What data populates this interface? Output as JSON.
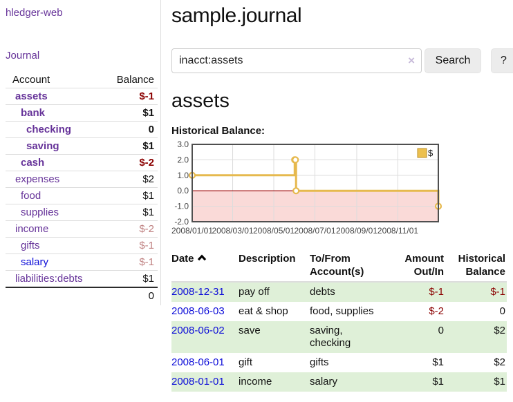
{
  "colors": {
    "brand_purple": "#663399",
    "link_blue": "#0d0dd8",
    "negative_red": "#8b0000",
    "negative_muted": "#bf8080",
    "shaded_row_green": "#dff0d8"
  },
  "sidebar": {
    "brand": "hledger-web",
    "nav_journal": "Journal",
    "accounts": {
      "headers": [
        "Account",
        "Balance"
      ],
      "rows": [
        {
          "name": "assets",
          "indent": 1,
          "bold": true,
          "link_color": "purple",
          "balance": "$-1",
          "balance_style": "negative"
        },
        {
          "name": "bank",
          "indent": 2,
          "bold": true,
          "link_color": "purple",
          "balance": "$1",
          "balance_style": "normal"
        },
        {
          "name": "checking",
          "indent": 3,
          "bold": true,
          "link_color": "purple",
          "balance": "0",
          "balance_style": "normal"
        },
        {
          "name": "saving",
          "indent": 3,
          "bold": true,
          "link_color": "purple",
          "balance": "$1",
          "balance_style": "normal"
        },
        {
          "name": "cash",
          "indent": 2,
          "bold": true,
          "link_color": "purple",
          "balance": "$-2",
          "balance_style": "negative"
        },
        {
          "name": "expenses",
          "indent": 1,
          "bold": false,
          "link_color": "purple",
          "balance": "$2",
          "balance_style": "normal"
        },
        {
          "name": "food",
          "indent": 2,
          "bold": false,
          "link_color": "purple",
          "balance": "$1",
          "balance_style": "normal"
        },
        {
          "name": "supplies",
          "indent": 2,
          "bold": false,
          "link_color": "purple",
          "balance": "$1",
          "balance_style": "normal"
        },
        {
          "name": "income",
          "indent": 1,
          "bold": false,
          "link_color": "purple",
          "balance": "$-2",
          "balance_style": "negative-muted"
        },
        {
          "name": "gifts",
          "indent": 2,
          "bold": false,
          "link_color": "purple",
          "balance": "$-1",
          "balance_style": "negative-muted"
        },
        {
          "name": "salary",
          "indent": 2,
          "bold": false,
          "link_color": "blue",
          "balance": "$-1",
          "balance_style": "negative-muted"
        },
        {
          "name": "liabilities:debts",
          "indent": 1,
          "bold": false,
          "link_color": "purple",
          "balance": "$1",
          "balance_style": "normal"
        }
      ],
      "total": "0"
    }
  },
  "main": {
    "title": "sample.journal",
    "search": {
      "value": "inacct:assets",
      "clear_icon": "×",
      "button_label": "Search",
      "help_label": "?"
    },
    "account_heading": "assets",
    "register_table": {
      "headers": [
        {
          "line1": "Date",
          "line2": "",
          "sorted": "asc"
        },
        {
          "line1": "Description",
          "line2": ""
        },
        {
          "line1": "To/From",
          "line2": "Account(s)"
        },
        {
          "line1": "Amount",
          "line2": "Out/In"
        },
        {
          "line1": "Historical",
          "line2": "Balance"
        }
      ],
      "rows": [
        {
          "date": "2008-12-31",
          "description": "pay off",
          "accounts": "debts",
          "amount": "$-1",
          "amount_style": "negative",
          "balance": "$-1",
          "balance_style": "negative",
          "shaded": true
        },
        {
          "date": "2008-06-03",
          "description": "eat & shop",
          "accounts": "food, supplies",
          "amount": "$-2",
          "amount_style": "negative",
          "balance": "0",
          "balance_style": "normal",
          "shaded": false
        },
        {
          "date": "2008-06-02",
          "description": "save",
          "accounts": "saving,\nchecking",
          "amount": "0",
          "amount_style": "normal",
          "balance": "$2",
          "balance_style": "normal",
          "shaded": true
        },
        {
          "date": "2008-06-01",
          "description": "gift",
          "accounts": "gifts",
          "amount": "$1",
          "amount_style": "normal",
          "balance": "$2",
          "balance_style": "normal",
          "shaded": false
        },
        {
          "date": "2008-01-01",
          "description": "income",
          "accounts": "salary",
          "amount": "$1",
          "amount_style": "normal",
          "balance": "$1",
          "balance_style": "normal",
          "shaded": true
        }
      ]
    }
  },
  "chart_data": {
    "type": "line",
    "step": true,
    "title": "Historical Balance:",
    "series": [
      {
        "name": "$",
        "color": "#e6b94e",
        "points": [
          {
            "date": "2008-01-01",
            "value": 1
          },
          {
            "date": "2008-06-01",
            "value": 2
          },
          {
            "date": "2008-06-02",
            "value": 2
          },
          {
            "date": "2008-06-03",
            "value": 0
          },
          {
            "date": "2008-12-31",
            "value": -1
          }
        ]
      }
    ],
    "xlim": [
      "2008-01-01",
      "2008-12-31"
    ],
    "ylim": [
      -2,
      3
    ],
    "x_ticks": [
      "2008/01/01",
      "2008/03/01",
      "2008/05/01",
      "2008/07/01",
      "2008/09/01",
      "2008/11/01"
    ],
    "y_ticks": [
      "3.0",
      "2.0",
      "1.0",
      "0.0",
      "-1.0",
      "-2.0"
    ],
    "grid": true,
    "legend_position": "top-right",
    "marker_fill": "#ffffff",
    "legend_square_fill": "#ecc04f",
    "legend_square_border": "#bb8f28",
    "negative_region_color": "#fadad8",
    "zero_line_color": "#990000",
    "border_color": "#4f4f4f",
    "grid_color": "#dcdcdc",
    "tick_label_color": "#444444"
  }
}
